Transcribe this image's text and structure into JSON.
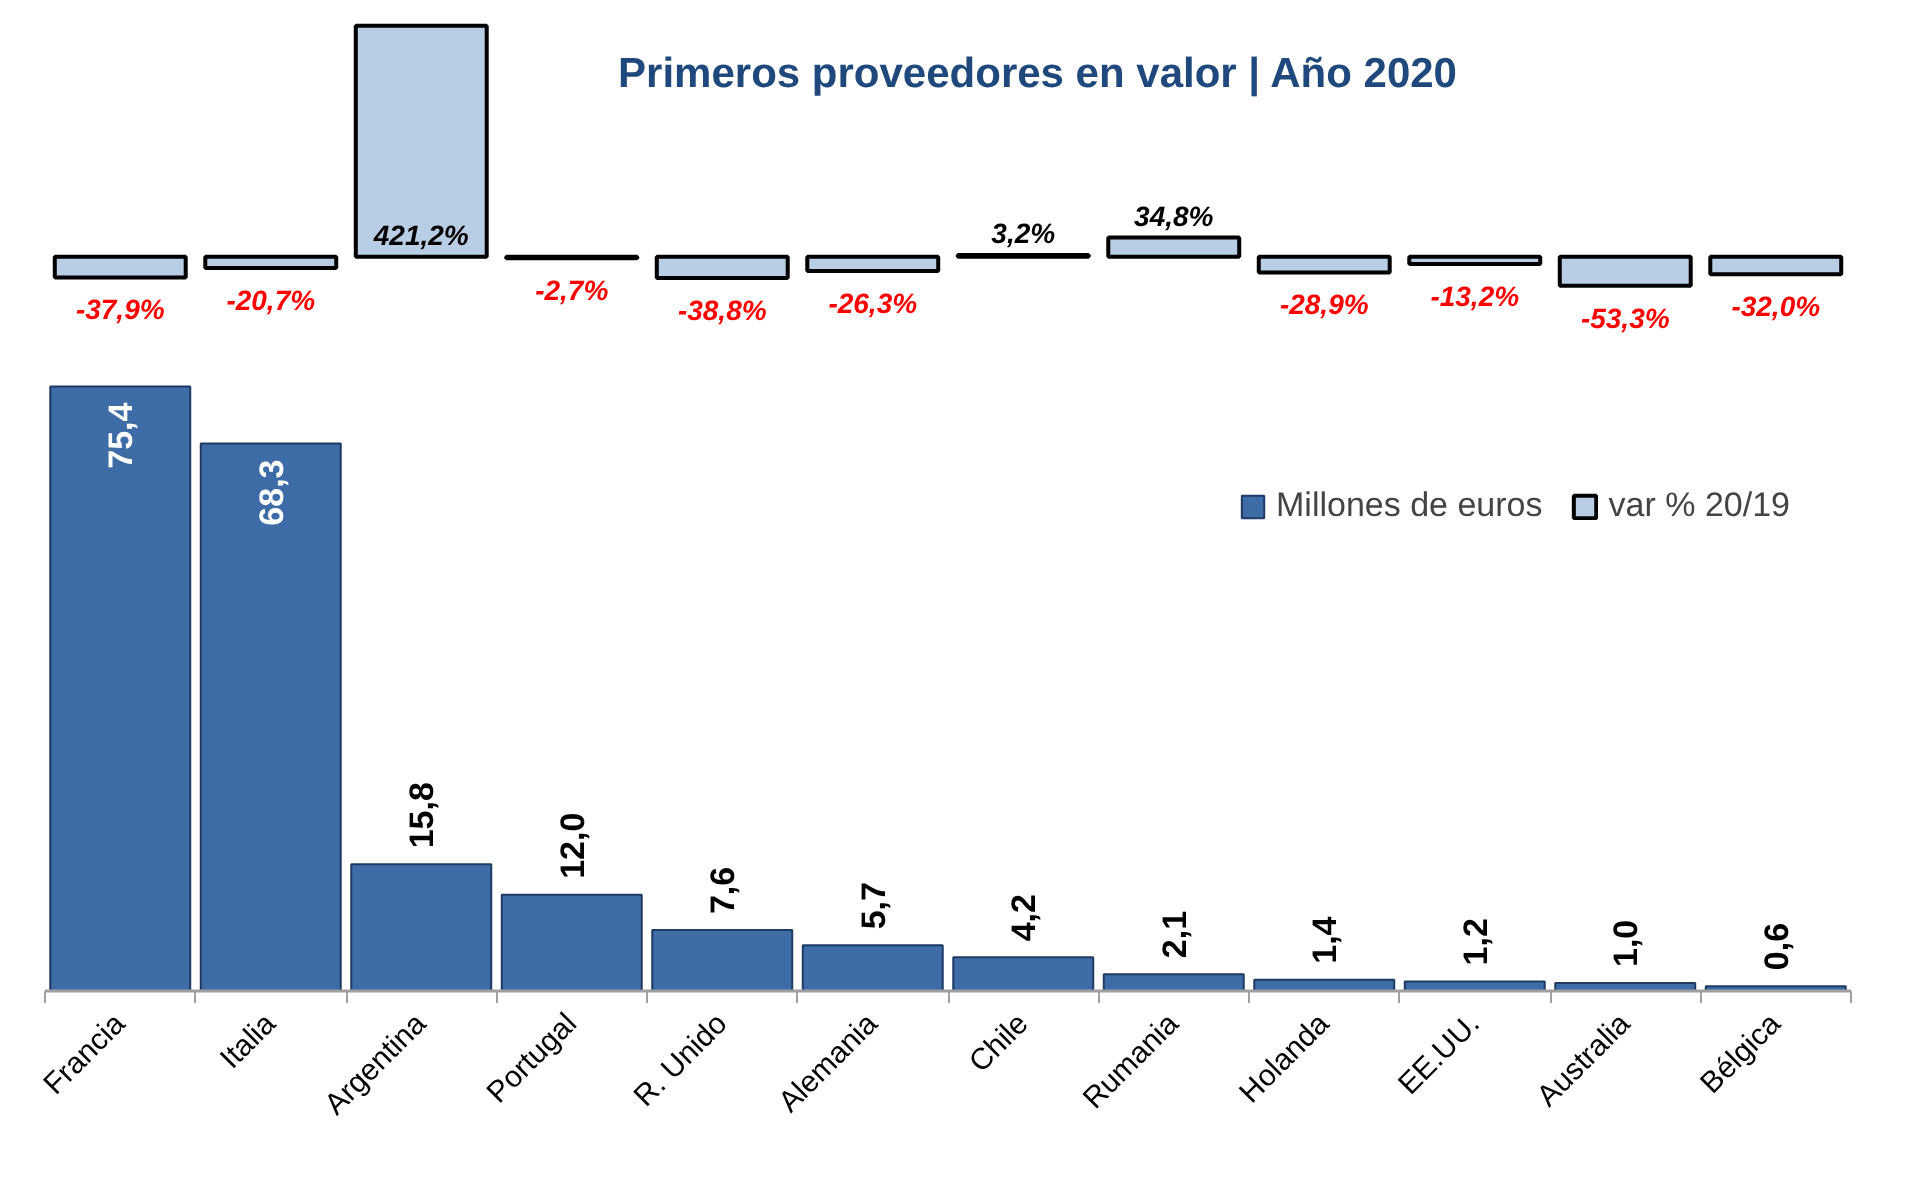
{
  "chart_data": {
    "type": "bar",
    "title": "Primeros proveedores en valor | Año 2020",
    "categories": [
      "Francia",
      "Italia",
      "Argentina",
      "Portugal",
      "R. Unido",
      "Alemania",
      "Chile",
      "Rumania",
      "Holanda",
      "EE.UU.",
      "Australia",
      "Bélgica"
    ],
    "series": [
      {
        "name": "Millones de euros",
        "color": "#3d6ca6",
        "values": [
          75.4,
          68.3,
          15.8,
          12.0,
          7.6,
          5.7,
          4.2,
          2.1,
          1.4,
          1.2,
          1.0,
          0.6
        ],
        "value_labels": [
          "75,4",
          "68,3",
          "15,8",
          "12,0",
          "7,6",
          "5,7",
          "4,2",
          "2,1",
          "1,4",
          "1,2",
          "1,0",
          "0,6"
        ]
      },
      {
        "name": "var % 20/19",
        "color": "#b9cde5",
        "axis": "y2",
        "values": [
          -37.9,
          -20.7,
          421.2,
          -2.7,
          -38.8,
          -26.3,
          3.2,
          34.8,
          -28.9,
          -13.2,
          -53.3,
          -32.0
        ],
        "value_labels": [
          "-37,9%",
          "-20,7%",
          "421,2%",
          "-2,7%",
          "-38,8%",
          "-26,3%",
          "3,2%",
          "34,8%",
          "-28,9%",
          "-13,2%",
          "-53,3%",
          "-32,0%"
        ]
      }
    ],
    "ylim": [
      0,
      121
    ],
    "y2lim": [
      -1340,
      430
    ],
    "tick_labels": "x",
    "legend": "right"
  }
}
